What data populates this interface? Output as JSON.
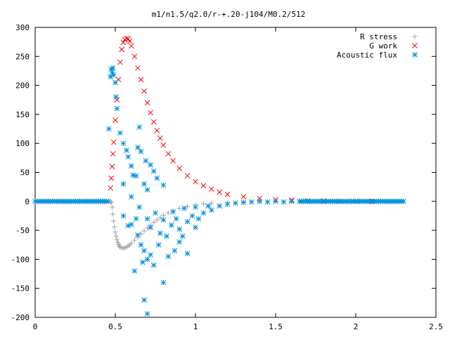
{
  "chart_data": {
    "type": "scatter",
    "title": "m1/n1.5/q2.0/r-+.20-j104/M0.2/512",
    "xlim": [
      0,
      2.5
    ],
    "ylim": [
      -200,
      300
    ],
    "x_ticks": [
      "0",
      "0.5",
      "1",
      "1.5",
      "2",
      "2.5"
    ],
    "y_ticks": [
      "300",
      "250",
      "200",
      "150",
      "100",
      "50",
      "0",
      "-50",
      "-100",
      "-150",
      "-200"
    ],
    "grid": false,
    "legend_position": "top-right",
    "series": [
      {
        "name": "R stress",
        "marker": "plus",
        "color": "#a0a0a0",
        "points": [
          [
            0.47,
            0
          ],
          [
            0.475,
            -2
          ],
          [
            0.48,
            -10
          ],
          [
            0.485,
            -22
          ],
          [
            0.49,
            -34
          ],
          [
            0.495,
            -44
          ],
          [
            0.5,
            -53
          ],
          [
            0.505,
            -60
          ],
          [
            0.51,
            -66
          ],
          [
            0.515,
            -71
          ],
          [
            0.52,
            -74
          ],
          [
            0.525,
            -77
          ],
          [
            0.53,
            -79
          ],
          [
            0.54,
            -80
          ],
          [
            0.55,
            -81
          ],
          [
            0.56,
            -80
          ],
          [
            0.57,
            -79
          ],
          [
            0.58,
            -77
          ],
          [
            0.59,
            -75
          ],
          [
            0.6,
            -72
          ],
          [
            0.62,
            -67
          ],
          [
            0.64,
            -62
          ],
          [
            0.66,
            -56
          ],
          [
            0.68,
            -51
          ],
          [
            0.7,
            -46
          ],
          [
            0.72,
            -41
          ],
          [
            0.74,
            -36
          ],
          [
            0.76,
            -32
          ],
          [
            0.78,
            -28
          ],
          [
            0.8,
            -24
          ],
          [
            0.83,
            -20
          ],
          [
            0.86,
            -16
          ],
          [
            0.9,
            -12
          ],
          [
            0.95,
            -9
          ],
          [
            1.0,
            -6
          ],
          [
            1.05,
            -4
          ],
          [
            1.1,
            -3
          ],
          [
            1.2,
            -2
          ],
          [
            1.3,
            -1
          ],
          [
            1.4,
            -0.5
          ],
          [
            1.5,
            0
          ],
          [
            1.7,
            0
          ],
          [
            1.9,
            0
          ],
          [
            2.1,
            0
          ]
        ]
      },
      {
        "name": "G work",
        "marker": "cross",
        "color": "#ff0000",
        "points": [
          [
            0.47,
            23
          ],
          [
            0.475,
            40
          ],
          [
            0.48,
            60
          ],
          [
            0.485,
            82
          ],
          [
            0.49,
            102
          ],
          [
            0.5,
            140
          ],
          [
            0.51,
            175
          ],
          [
            0.52,
            210
          ],
          [
            0.53,
            240
          ],
          [
            0.54,
            262
          ],
          [
            0.55,
            274
          ],
          [
            0.56,
            279
          ],
          [
            0.57,
            281
          ],
          [
            0.58,
            280
          ],
          [
            0.59,
            276
          ],
          [
            0.6,
            268
          ],
          [
            0.62,
            250
          ],
          [
            0.64,
            230
          ],
          [
            0.66,
            210
          ],
          [
            0.68,
            190
          ],
          [
            0.7,
            170
          ],
          [
            0.72,
            153
          ],
          [
            0.74,
            137
          ],
          [
            0.76,
            122
          ],
          [
            0.78,
            109
          ],
          [
            0.8,
            97
          ],
          [
            0.83,
            82
          ],
          [
            0.86,
            70
          ],
          [
            0.9,
            57
          ],
          [
            0.95,
            44
          ],
          [
            1.0,
            34
          ],
          [
            1.05,
            27
          ],
          [
            1.1,
            21
          ],
          [
            1.15,
            16
          ],
          [
            1.2,
            12
          ],
          [
            1.3,
            8
          ],
          [
            1.4,
            5
          ],
          [
            1.5,
            3
          ],
          [
            1.6,
            2
          ],
          [
            1.7,
            1
          ],
          [
            1.8,
            0.5
          ],
          [
            1.9,
            0
          ],
          [
            2.0,
            0
          ],
          [
            2.1,
            0
          ]
        ]
      },
      {
        "name": "Acoustic flux",
        "marker": "star",
        "color": "#0090e0",
        "points": [
          [
            0.46,
            125
          ],
          [
            0.47,
            215
          ],
          [
            0.475,
            228
          ],
          [
            0.48,
            222
          ],
          [
            0.485,
            230
          ],
          [
            0.49,
            218
          ],
          [
            0.5,
            205
          ],
          [
            0.505,
            180
          ],
          [
            0.51,
            160
          ],
          [
            0.53,
            118
          ],
          [
            0.55,
            100
          ],
          [
            0.57,
            88
          ],
          [
            0.58,
            77
          ],
          [
            0.6,
            61
          ],
          [
            0.61,
            45
          ],
          [
            0.63,
            44
          ],
          [
            0.64,
            93
          ],
          [
            0.65,
            128
          ],
          [
            0.66,
            86
          ],
          [
            0.68,
            30
          ],
          [
            0.7,
            20
          ],
          [
            0.69,
            70
          ],
          [
            0.72,
            63
          ],
          [
            0.74,
            52
          ],
          [
            0.76,
            40
          ],
          [
            0.8,
            28
          ],
          [
            0.55,
            30
          ],
          [
            0.6,
            8
          ],
          [
            0.65,
            -10
          ],
          [
            0.7,
            -30
          ],
          [
            0.72,
            -45
          ],
          [
            0.75,
            -20
          ],
          [
            0.78,
            -55
          ],
          [
            0.8,
            -32
          ],
          [
            0.82,
            -60
          ],
          [
            0.85,
            -41
          ],
          [
            0.88,
            -30
          ],
          [
            0.9,
            -48
          ],
          [
            0.92,
            -60
          ],
          [
            0.95,
            -35
          ],
          [
            0.98,
            -25
          ],
          [
            1.0,
            -45
          ],
          [
            1.02,
            -30
          ],
          [
            1.05,
            -20
          ],
          [
            1.1,
            -15
          ],
          [
            1.15,
            -8
          ],
          [
            1.2,
            -5
          ],
          [
            0.6,
            -40
          ],
          [
            0.64,
            -58
          ],
          [
            0.66,
            -75
          ],
          [
            0.68,
            -85
          ],
          [
            0.7,
            -100
          ],
          [
            0.72,
            -92
          ],
          [
            0.74,
            -110
          ],
          [
            0.77,
            -75
          ],
          [
            0.8,
            -140
          ],
          [
            0.83,
            -95
          ],
          [
            0.87,
            -85
          ],
          [
            0.9,
            -70
          ],
          [
            0.95,
            -90
          ],
          [
            0.68,
            -170
          ],
          [
            0.7,
            -194
          ],
          [
            0.62,
            -120
          ],
          [
            0.67,
            -105
          ],
          [
            0.55,
            -25
          ],
          [
            0.58,
            -42
          ],
          [
            0.63,
            -30
          ],
          [
            0.86,
            -18
          ],
          [
            0.93,
            -12
          ],
          [
            1.0,
            -10
          ],
          [
            1.08,
            -8
          ],
          [
            1.25,
            -3
          ],
          [
            1.3,
            -2
          ],
          [
            1.35,
            -1
          ],
          [
            1.4,
            0
          ],
          [
            1.45,
            -1
          ],
          [
            1.5,
            0
          ],
          [
            1.55,
            -1
          ],
          [
            1.6,
            0
          ],
          [
            1.65,
            0
          ]
        ]
      }
    ]
  }
}
